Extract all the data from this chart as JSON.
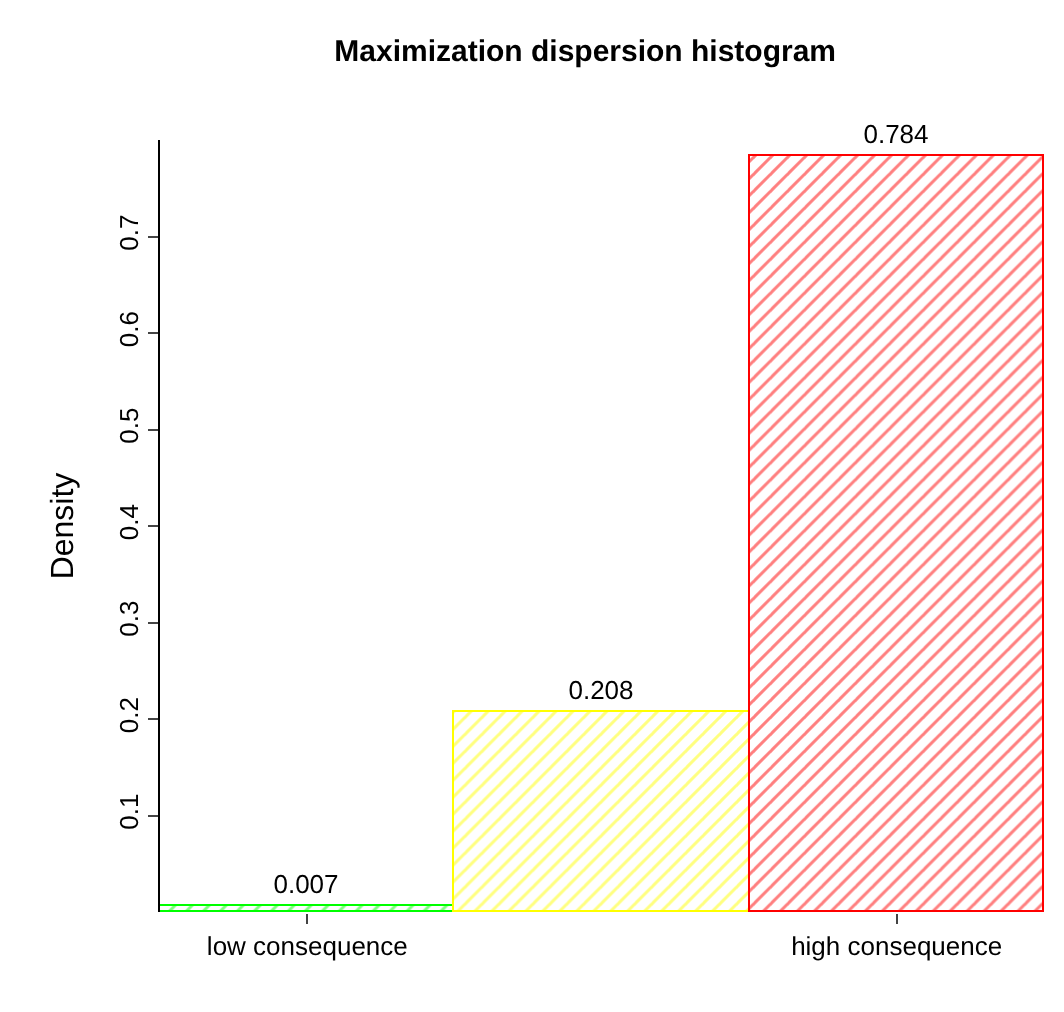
{
  "chart_data": {
    "type": "bar",
    "title": "Maximization dispersion histogram",
    "ylabel": "Density",
    "categories": [
      "low consequence",
      null,
      "high consequence"
    ],
    "values": [
      0.007,
      0.208,
      0.784
    ],
    "colors": [
      "#00ff00",
      "#ffff00",
      "#ff0000"
    ],
    "ylim": [
      0,
      0.8
    ],
    "yticks": [
      0.1,
      0.2,
      0.3,
      0.4,
      0.5,
      0.6,
      0.7
    ],
    "data_labels": true
  }
}
